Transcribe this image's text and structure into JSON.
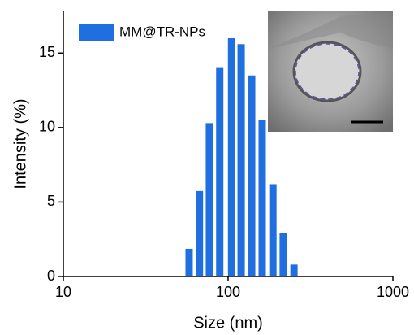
{
  "chart_data": {
    "type": "bar",
    "x_label": "Size (nm)",
    "y_label": "Intensity (%)",
    "x": [
      58,
      67,
      77,
      89,
      105,
      120,
      139,
      161,
      187,
      216,
      251
    ],
    "series": [
      {
        "name": "MM@TR-NPs",
        "color": "#1f6fe0",
        "values": [
          1.86,
          5.74,
          10.3,
          14.0,
          16.0,
          15.6,
          13.5,
          10.5,
          6.2,
          2.9,
          0.8
        ]
      }
    ],
    "x_log": true,
    "xlim": [
      10,
      1000
    ],
    "xticks": [
      10,
      100,
      1000
    ],
    "ylim": [
      0,
      17.8
    ],
    "yticks": [
      0,
      5,
      10,
      15
    ],
    "legend": "upper-left"
  }
}
